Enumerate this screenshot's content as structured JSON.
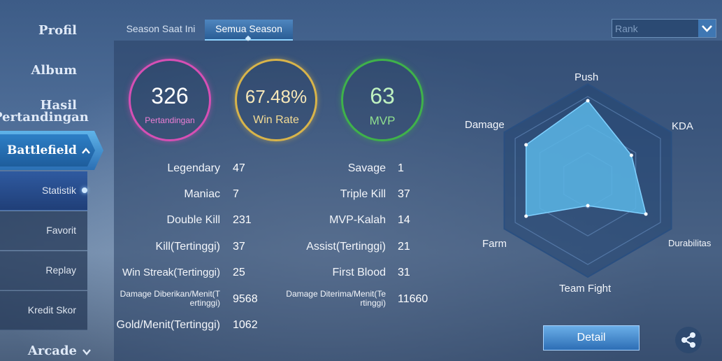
{
  "sidebar": {
    "items": [
      {
        "label": "Profil"
      },
      {
        "label": "Album"
      },
      {
        "label": "Hasil\nPertandingan"
      },
      {
        "label": "Battlefield"
      },
      {
        "label": "Arcade"
      }
    ],
    "hasil_line1": "Hasil",
    "hasil_line2": "Pertandingan",
    "sub_items": [
      {
        "label": "Statistik"
      },
      {
        "label": "Favorit"
      },
      {
        "label": "Replay"
      },
      {
        "label": "Kredit Skor"
      }
    ]
  },
  "tabs": [
    {
      "label": "Season Saat Ini"
    },
    {
      "label": "Semua Season"
    }
  ],
  "mode_select": {
    "value": "Rank"
  },
  "summary": {
    "matches": {
      "value": "326",
      "label": "Pertandingan"
    },
    "win_rate": {
      "value": "67.48%",
      "label": "Win Rate"
    },
    "mvp": {
      "value": "63",
      "label": "MVP"
    }
  },
  "stats_left": [
    {
      "label": "Legendary",
      "value": "47"
    },
    {
      "label": "Maniac",
      "value": "7"
    },
    {
      "label": "Double Kill",
      "value": "231"
    },
    {
      "label": "Kill(Tertinggi)",
      "value": "37"
    },
    {
      "label": "Win Streak(Tertinggi)",
      "value": "25"
    },
    {
      "label": "Damage Diberikan/Menit(Tertinggi)",
      "line1": "Damage Diberikan/Menit(T",
      "line2": "ertinggi)",
      "value": "9568"
    },
    {
      "label": "Gold/Menit(Tertinggi)",
      "value": "1062"
    }
  ],
  "stats_right": [
    {
      "label": "Savage",
      "value": "1"
    },
    {
      "label": "Triple Kill",
      "value": "37"
    },
    {
      "label": "MVP-Kalah",
      "value": "14"
    },
    {
      "label": "Assist(Tertinggi)",
      "value": "21"
    },
    {
      "label": "First Blood",
      "value": "31"
    },
    {
      "label": "Damage Diterima/Menit(Tertinggi)",
      "line1": "Damage Diterima/Menit(Te",
      "line2": "rtinggi)",
      "value": "11660"
    }
  ],
  "radar": {
    "axes": [
      "Push",
      "KDA",
      "Durabilitas",
      "Team Fight",
      "Farm",
      "Damage"
    ],
    "values": [
      0.95,
      0.6,
      0.8,
      0.3,
      0.85,
      0.85
    ]
  },
  "buttons": {
    "detail": "Detail"
  },
  "colors": {
    "matches": "#d64fb4",
    "win_rate": "#d8b44a",
    "mvp": "#3fb24a",
    "radar_fill": "#5bb6e6"
  }
}
